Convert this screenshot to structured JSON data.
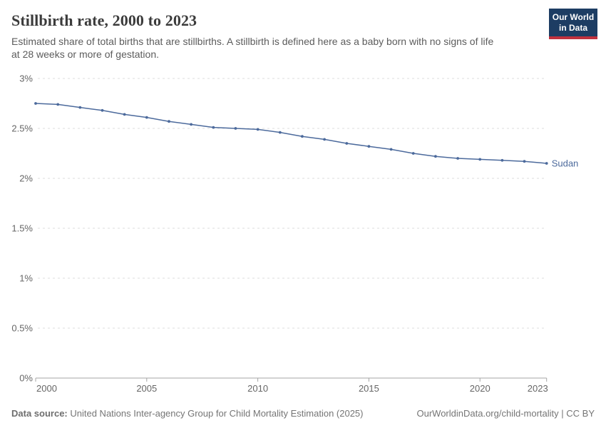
{
  "header": {
    "title": "Stillbirth rate, 2000 to 2023",
    "subtitle": "Estimated share of total births that are stillbirths. A stillbirth is defined here as a baby born with no signs of life\nat 28 weeks or more of gestation.",
    "logo": {
      "line1": "Our World",
      "line2": "in Data",
      "bg_color": "#1d3d63",
      "stripe_color": "#c0323e"
    }
  },
  "chart_data": {
    "type": "line",
    "title": "Stillbirth rate, 2000 to 2023",
    "unit": "%",
    "x": [
      2000,
      2001,
      2002,
      2003,
      2004,
      2005,
      2006,
      2007,
      2008,
      2009,
      2010,
      2011,
      2012,
      2013,
      2014,
      2015,
      2016,
      2017,
      2018,
      2019,
      2020,
      2021,
      2022,
      2023
    ],
    "series": [
      {
        "name": "Sudan",
        "color": "#4c6a9c",
        "values": [
          2.75,
          2.74,
          2.71,
          2.68,
          2.64,
          2.61,
          2.57,
          2.54,
          2.51,
          2.5,
          2.49,
          2.46,
          2.42,
          2.39,
          2.35,
          2.32,
          2.29,
          2.25,
          2.22,
          2.2,
          2.19,
          2.18,
          2.17,
          2.15
        ]
      }
    ],
    "xlim": [
      2000,
      2023
    ],
    "ylim": [
      0,
      3
    ],
    "x_ticks": [
      2000,
      2005,
      2010,
      2015,
      2020,
      2023
    ],
    "y_ticks": [
      {
        "value": 0,
        "label": "0%"
      },
      {
        "value": 0.5,
        "label": "0.5%"
      },
      {
        "value": 1,
        "label": "1%"
      },
      {
        "value": 1.5,
        "label": "1.5%"
      },
      {
        "value": 2,
        "label": "2%"
      },
      {
        "value": 2.5,
        "label": "2.5%"
      },
      {
        "value": 3,
        "label": "3%"
      }
    ],
    "grid": "horizontal-dashed",
    "legend_position": "end-of-line-label"
  },
  "footer": {
    "source_label": "Data source:",
    "source_text": " United Nations Inter-agency Group for Child Mortality Estimation (2025)",
    "license_text": "OurWorldinData.org/child-mortality | CC BY"
  },
  "colors": {
    "line": "#4c6a9c",
    "grid": "#dddddd",
    "axis": "#a5a5a5",
    "tick_label": "#666666",
    "title": "#3b3b3b",
    "subtitle": "#5c5c5c",
    "footer": "#757575"
  }
}
